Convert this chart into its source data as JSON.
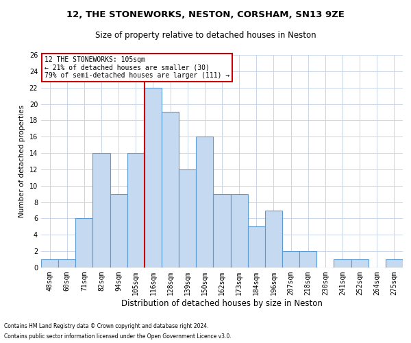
{
  "title1": "12, THE STONEWORKS, NESTON, CORSHAM, SN13 9ZE",
  "title2": "Size of property relative to detached houses in Neston",
  "xlabel": "Distribution of detached houses by size in Neston",
  "ylabel": "Number of detached properties",
  "categories": [
    "48sqm",
    "60sqm",
    "71sqm",
    "82sqm",
    "94sqm",
    "105sqm",
    "116sqm",
    "128sqm",
    "139sqm",
    "150sqm",
    "162sqm",
    "173sqm",
    "184sqm",
    "196sqm",
    "207sqm",
    "218sqm",
    "230sqm",
    "241sqm",
    "252sqm",
    "264sqm",
    "275sqm"
  ],
  "values": [
    1,
    1,
    6,
    14,
    9,
    14,
    22,
    19,
    12,
    16,
    9,
    9,
    5,
    7,
    2,
    2,
    0,
    1,
    1,
    0,
    1
  ],
  "bar_color": "#c5d9f0",
  "bar_edge_color": "#5b9bd5",
  "red_line_index": 5,
  "ylim": [
    0,
    26
  ],
  "yticks": [
    0,
    2,
    4,
    6,
    8,
    10,
    12,
    14,
    16,
    18,
    20,
    22,
    24,
    26
  ],
  "annotation_text": "12 THE STONEWORKS: 105sqm\n← 21% of detached houses are smaller (30)\n79% of semi-detached houses are larger (111) →",
  "annotation_box_color": "#ffffff",
  "annotation_box_edge_color": "#cc0000",
  "footer1": "Contains HM Land Registry data © Crown copyright and database right 2024.",
  "footer2": "Contains public sector information licensed under the Open Government Licence v3.0.",
  "background_color": "#ffffff",
  "grid_color": "#c8d4e8",
  "title1_fontsize": 9.5,
  "title2_fontsize": 8.5,
  "xlabel_fontsize": 8.5,
  "ylabel_fontsize": 7.5,
  "tick_fontsize": 7,
  "annotation_fontsize": 7,
  "footer_fontsize": 5.5
}
